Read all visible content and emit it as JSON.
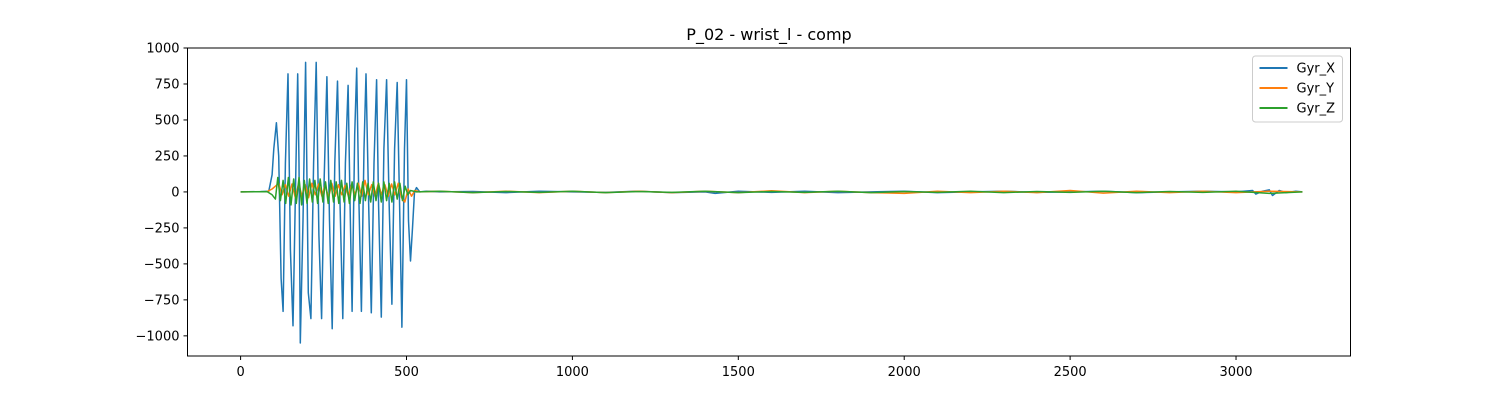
{
  "chart_data": {
    "type": "line",
    "title": "P_02 - wrist_l - comp",
    "xlabel": "",
    "ylabel": "",
    "xlim": [
      -160,
      3345
    ],
    "ylim": [
      -1140,
      1000
    ],
    "xticks": [
      0,
      500,
      1000,
      1500,
      2000,
      2500,
      3000
    ],
    "yticks": [
      -1000,
      -750,
      -500,
      -250,
      0,
      250,
      500,
      750,
      1000
    ],
    "ytick_labels": [
      "−1000",
      "−750",
      "−500",
      "−250",
      "0",
      "250",
      "500",
      "750",
      "1000"
    ],
    "grid": false,
    "legend_position": "top-right",
    "series": [
      {
        "name": "Gyr_X",
        "color": "#1f77b4",
        "points": [
          [
            0,
            0
          ],
          [
            60,
            2
          ],
          [
            85,
            5
          ],
          [
            95,
            120
          ],
          [
            100,
            300
          ],
          [
            108,
            480
          ],
          [
            115,
            250
          ],
          [
            122,
            -600
          ],
          [
            128,
            -830
          ],
          [
            135,
            200
          ],
          [
            143,
            820
          ],
          [
            150,
            -400
          ],
          [
            158,
            -930
          ],
          [
            166,
            100
          ],
          [
            172,
            820
          ],
          [
            176,
            200
          ],
          [
            180,
            -1050
          ],
          [
            188,
            -200
          ],
          [
            196,
            900
          ],
          [
            204,
            -700
          ],
          [
            212,
            -880
          ],
          [
            220,
            200
          ],
          [
            228,
            900
          ],
          [
            236,
            -300
          ],
          [
            244,
            -880
          ],
          [
            252,
            100
          ],
          [
            260,
            800
          ],
          [
            268,
            -200
          ],
          [
            276,
            -950
          ],
          [
            284,
            200
          ],
          [
            292,
            770
          ],
          [
            300,
            -100
          ],
          [
            308,
            -880
          ],
          [
            316,
            200
          ],
          [
            324,
            740
          ],
          [
            330,
            -100
          ],
          [
            336,
            -830
          ],
          [
            344,
            400
          ],
          [
            350,
            860
          ],
          [
            356,
            0
          ],
          [
            364,
            -830
          ],
          [
            372,
            300
          ],
          [
            378,
            820
          ],
          [
            386,
            -100
          ],
          [
            394,
            -840
          ],
          [
            402,
            200
          ],
          [
            410,
            780
          ],
          [
            416,
            -100
          ],
          [
            424,
            -870
          ],
          [
            432,
            300
          ],
          [
            440,
            780
          ],
          [
            448,
            -100
          ],
          [
            456,
            -780
          ],
          [
            464,
            300
          ],
          [
            472,
            760
          ],
          [
            480,
            -200
          ],
          [
            486,
            -940
          ],
          [
            494,
            300
          ],
          [
            500,
            780
          ],
          [
            506,
            -200
          ],
          [
            512,
            -480
          ],
          [
            518,
            -250
          ],
          [
            524,
            0
          ],
          [
            530,
            30
          ],
          [
            540,
            0
          ],
          [
            560,
            5
          ],
          [
            600,
            0
          ],
          [
            700,
            3
          ],
          [
            800,
            -5
          ],
          [
            900,
            5
          ],
          [
            1000,
            0
          ],
          [
            1100,
            -3
          ],
          [
            1200,
            5
          ],
          [
            1300,
            -5
          ],
          [
            1400,
            0
          ],
          [
            1430,
            -10
          ],
          [
            1500,
            5
          ],
          [
            1600,
            -3
          ],
          [
            1700,
            5
          ],
          [
            1800,
            -5
          ],
          [
            1900,
            0
          ],
          [
            2000,
            5
          ],
          [
            2100,
            -5
          ],
          [
            2200,
            0
          ],
          [
            2300,
            5
          ],
          [
            2400,
            -3
          ],
          [
            2500,
            0
          ],
          [
            2600,
            5
          ],
          [
            2700,
            -5
          ],
          [
            2800,
            0
          ],
          [
            2900,
            5
          ],
          [
            3000,
            0
          ],
          [
            3050,
            10
          ],
          [
            3060,
            -15
          ],
          [
            3080,
            5
          ],
          [
            3100,
            15
          ],
          [
            3110,
            -25
          ],
          [
            3130,
            10
          ],
          [
            3150,
            -5
          ],
          [
            3180,
            5
          ],
          [
            3200,
            0
          ]
        ]
      },
      {
        "name": "Gyr_Y",
        "color": "#ff7f0e",
        "points": [
          [
            0,
            0
          ],
          [
            80,
            2
          ],
          [
            95,
            20
          ],
          [
            105,
            40
          ],
          [
            115,
            60
          ],
          [
            125,
            -20
          ],
          [
            135,
            50
          ],
          [
            145,
            -30
          ],
          [
            155,
            55
          ],
          [
            165,
            -40
          ],
          [
            175,
            60
          ],
          [
            185,
            -30
          ],
          [
            195,
            50
          ],
          [
            205,
            -40
          ],
          [
            215,
            60
          ],
          [
            225,
            -20
          ],
          [
            235,
            55
          ],
          [
            245,
            -30
          ],
          [
            255,
            50
          ],
          [
            265,
            -40
          ],
          [
            275,
            60
          ],
          [
            285,
            -30
          ],
          [
            295,
            50
          ],
          [
            305,
            -20
          ],
          [
            315,
            45
          ],
          [
            325,
            -30
          ],
          [
            335,
            55
          ],
          [
            345,
            -20
          ],
          [
            355,
            60
          ],
          [
            365,
            -30
          ],
          [
            375,
            80
          ],
          [
            385,
            -20
          ],
          [
            395,
            50
          ],
          [
            405,
            -30
          ],
          [
            415,
            60
          ],
          [
            425,
            -20
          ],
          [
            435,
            50
          ],
          [
            445,
            -30
          ],
          [
            455,
            55
          ],
          [
            465,
            -20
          ],
          [
            475,
            60
          ],
          [
            485,
            -40
          ],
          [
            495,
            -70
          ],
          [
            505,
            20
          ],
          [
            515,
            -30
          ],
          [
            525,
            10
          ],
          [
            540,
            0
          ],
          [
            600,
            5
          ],
          [
            700,
            -5
          ],
          [
            800,
            5
          ],
          [
            900,
            -5
          ],
          [
            1000,
            5
          ],
          [
            1100,
            -5
          ],
          [
            1200,
            5
          ],
          [
            1300,
            -5
          ],
          [
            1400,
            5
          ],
          [
            1500,
            -5
          ],
          [
            1600,
            8
          ],
          [
            1700,
            -5
          ],
          [
            1800,
            5
          ],
          [
            1900,
            -5
          ],
          [
            2000,
            -10
          ],
          [
            2100,
            5
          ],
          [
            2200,
            -5
          ],
          [
            2300,
            5
          ],
          [
            2400,
            -5
          ],
          [
            2500,
            10
          ],
          [
            2600,
            -8
          ],
          [
            2700,
            5
          ],
          [
            2800,
            -5
          ],
          [
            2900,
            5
          ],
          [
            3000,
            -5
          ],
          [
            3100,
            5
          ],
          [
            3200,
            0
          ]
        ]
      },
      {
        "name": "Gyr_Z",
        "color": "#2ca02c",
        "points": [
          [
            0,
            0
          ],
          [
            80,
            2
          ],
          [
            95,
            -20
          ],
          [
            105,
            -50
          ],
          [
            112,
            100
          ],
          [
            120,
            -60
          ],
          [
            128,
            80
          ],
          [
            136,
            -80
          ],
          [
            144,
            100
          ],
          [
            152,
            -90
          ],
          [
            160,
            90
          ],
          [
            168,
            -80
          ],
          [
            176,
            100
          ],
          [
            184,
            -90
          ],
          [
            192,
            80
          ],
          [
            200,
            -80
          ],
          [
            208,
            90
          ],
          [
            216,
            -70
          ],
          [
            224,
            80
          ],
          [
            232,
            -80
          ],
          [
            240,
            90
          ],
          [
            248,
            -70
          ],
          [
            256,
            70
          ],
          [
            264,
            -80
          ],
          [
            272,
            80
          ],
          [
            280,
            -70
          ],
          [
            288,
            70
          ],
          [
            296,
            -80
          ],
          [
            304,
            80
          ],
          [
            312,
            -70
          ],
          [
            320,
            60
          ],
          [
            328,
            -80
          ],
          [
            336,
            70
          ],
          [
            344,
            -60
          ],
          [
            352,
            60
          ],
          [
            360,
            -80
          ],
          [
            368,
            70
          ],
          [
            376,
            -60
          ],
          [
            384,
            60
          ],
          [
            392,
            -70
          ],
          [
            400,
            70
          ],
          [
            408,
            -60
          ],
          [
            416,
            60
          ],
          [
            424,
            -70
          ],
          [
            432,
            70
          ],
          [
            440,
            -60
          ],
          [
            448,
            60
          ],
          [
            456,
            -70
          ],
          [
            464,
            70
          ],
          [
            472,
            -50
          ],
          [
            480,
            60
          ],
          [
            488,
            -60
          ],
          [
            496,
            40
          ],
          [
            504,
            -20
          ],
          [
            512,
            10
          ],
          [
            530,
            0
          ],
          [
            600,
            5
          ],
          [
            700,
            -5
          ],
          [
            800,
            3
          ],
          [
            900,
            -3
          ],
          [
            1000,
            5
          ],
          [
            1100,
            -5
          ],
          [
            1200,
            3
          ],
          [
            1300,
            -3
          ],
          [
            1400,
            5
          ],
          [
            1500,
            -5
          ],
          [
            1600,
            3
          ],
          [
            1700,
            -3
          ],
          [
            1800,
            5
          ],
          [
            1900,
            -5
          ],
          [
            2000,
            3
          ],
          [
            2100,
            -3
          ],
          [
            2200,
            5
          ],
          [
            2300,
            -5
          ],
          [
            2400,
            3
          ],
          [
            2500,
            -3
          ],
          [
            2600,
            5
          ],
          [
            2700,
            -5
          ],
          [
            2800,
            3
          ],
          [
            2900,
            -3
          ],
          [
            3000,
            5
          ],
          [
            3100,
            -10
          ],
          [
            3200,
            0
          ]
        ]
      }
    ]
  }
}
